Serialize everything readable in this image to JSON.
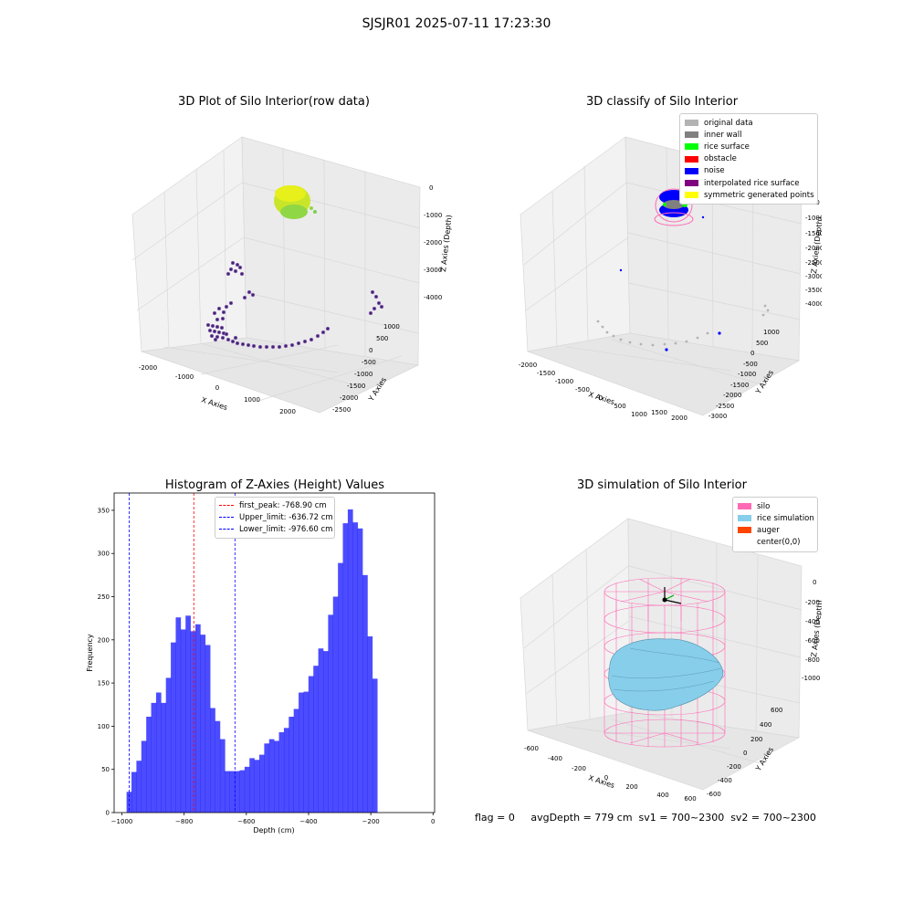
{
  "figure_title": "SJSJR01 2025-07-11 17:23:30",
  "panels": {
    "raw": {
      "title": "3D Plot of Silo Interior(row data)",
      "xlabel": "X Axies",
      "ylabel": "Y Axies",
      "zlabel": "Z Axies (Depth)",
      "xticks": [
        "-2000",
        "-1000",
        "0",
        "1000",
        "2000"
      ],
      "yticks": [
        "1000",
        "500",
        "0",
        "-500",
        "-1000",
        "-1500",
        "-2000",
        "-2500"
      ],
      "zticks": [
        "0",
        "-1000",
        "-2000",
        "-3000",
        "-4000"
      ]
    },
    "classify": {
      "title": "3D classify of Silo Interior",
      "xlabel": "X Axies",
      "ylabel": "Y Axies",
      "zlabel": "Z Axies (Depth)",
      "xticks": [
        "-2000",
        "-1500",
        "-1000",
        "-500",
        "0",
        "500",
        "1000",
        "1500",
        "2000"
      ],
      "yticks": [
        "1000",
        "500",
        "0",
        "-500",
        "-1000",
        "-1500",
        "-2000",
        "-2500",
        "-3000"
      ],
      "zticks": [
        "-500",
        "-1000",
        "-1500",
        "-2000",
        "-2500",
        "-3000",
        "-3500",
        "-4000"
      ],
      "legend": [
        {
          "label": "original data",
          "color": "#b3b3b3"
        },
        {
          "label": "inner wall",
          "color": "#808080"
        },
        {
          "label": "rice surface",
          "color": "#00ff00"
        },
        {
          "label": "obstacle",
          "color": "#ff0000"
        },
        {
          "label": "noise",
          "color": "#0000ff"
        },
        {
          "label": "interpolated rice surface",
          "color": "#800080"
        },
        {
          "label": "symmetric generated points",
          "color": "#ffff00"
        }
      ]
    },
    "simulation": {
      "title": "3D simulation of Silo Interior",
      "xlabel": "X Axies",
      "ylabel": "Y Axies",
      "zlabel": "Z Axies (Depth)",
      "xticks": [
        "-600",
        "-400",
        "-200",
        "0",
        "200",
        "400",
        "600"
      ],
      "yticks": [
        "600",
        "400",
        "200",
        "0",
        "-200",
        "-400",
        "-600"
      ],
      "zticks": [
        "0",
        "-200",
        "-400",
        "-600",
        "-800",
        "-1000"
      ],
      "legend": [
        {
          "label": "silo",
          "color": "#ff69b4"
        },
        {
          "label": "rice simulation",
          "color": "#87ceeb"
        },
        {
          "label": "auger",
          "color": "#ff4500"
        },
        {
          "label": "center(0,0)",
          "color": ""
        }
      ]
    }
  },
  "footer": "flag = 0     avgDepth = 779 cm  sv1 = 700~2300  sv2 = 700~2300",
  "chart_data": {
    "type": "bar",
    "title": "Histogram of Z-Axies (Height) Values",
    "xlabel": "Depth (cm)",
    "ylabel": "Frequency",
    "xlim": [
      -1025,
      5
    ],
    "ylim": [
      0,
      370
    ],
    "xticks": [
      -1000,
      -800,
      -600,
      -400,
      -200,
      0
    ],
    "yticks": [
      0,
      50,
      100,
      150,
      200,
      250,
      300,
      350
    ],
    "bar_color": "#0000ff",
    "bins": {
      "start": -985,
      "width": 15.8,
      "counts": [
        24,
        47,
        60,
        83,
        111,
        127,
        139,
        127,
        156,
        197,
        226,
        212,
        228,
        210,
        218,
        206,
        194,
        121,
        106,
        85,
        48,
        48,
        48,
        49,
        53,
        63,
        61,
        67,
        80,
        85,
        83,
        93,
        98,
        111,
        120,
        139,
        140,
        158,
        170,
        190,
        187,
        229,
        250,
        289,
        335,
        351,
        336,
        329,
        275,
        204,
        155
      ]
    },
    "lines": [
      {
        "label": "first_peak: -768.90 cm",
        "x": -768.9,
        "color": "#ff0000"
      },
      {
        "label": "Upper_limit: -636.72 cm",
        "x": -636.72,
        "color": "#0000ff"
      },
      {
        "label": "Lower_limit: -976.60 cm",
        "x": -976.6,
        "color": "#0000ff"
      }
    ]
  }
}
